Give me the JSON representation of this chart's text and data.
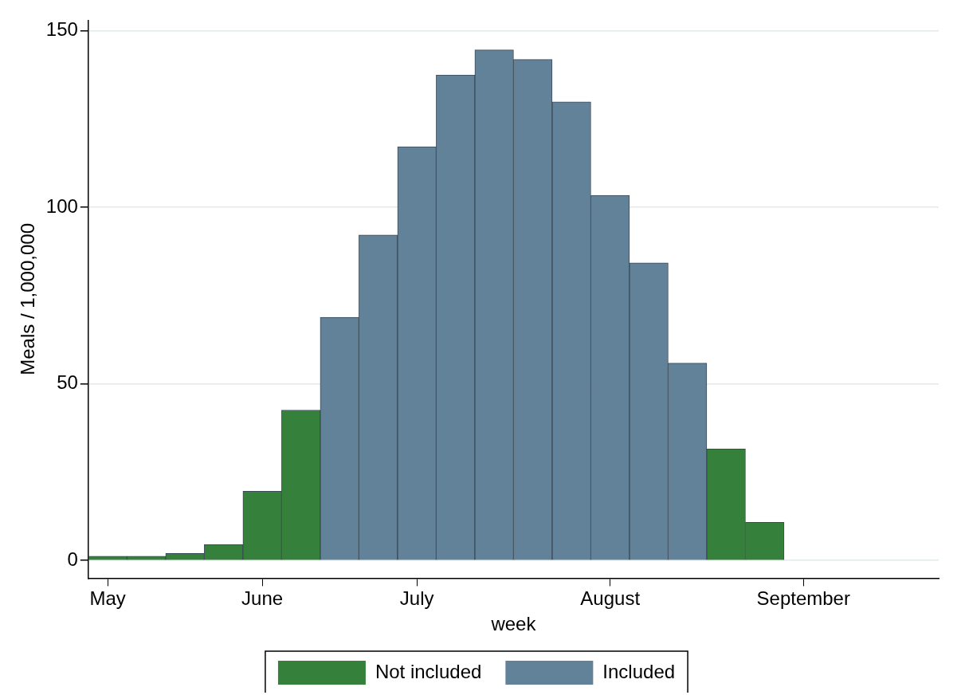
{
  "chart_data": {
    "type": "bar",
    "xlabel": "week",
    "ylabel": "Meals / 1,000,000",
    "categories": [
      "May",
      null,
      null,
      null,
      "June",
      null,
      null,
      null,
      "July",
      null,
      null,
      null,
      null,
      "August",
      null,
      null,
      null,
      null,
      "September",
      null,
      null,
      null
    ],
    "series": [
      {
        "name": "Not included",
        "color": "#35803a",
        "values": [
          1.2,
          1.2,
          2,
          4.5,
          19.6,
          42.6,
          null,
          null,
          null,
          null,
          null,
          null,
          null,
          null,
          null,
          null,
          31.6,
          10.8,
          0,
          0,
          0,
          0
        ]
      },
      {
        "name": "Included",
        "color": "#62829a",
        "values": [
          null,
          null,
          null,
          null,
          null,
          null,
          68.9,
          92.2,
          117.2,
          137.5,
          144.6,
          141.9,
          129.9,
          103.4,
          84.3,
          55.9,
          null,
          null,
          null,
          null,
          null,
          null
        ]
      }
    ],
    "ylim": [
      -5,
      153
    ],
    "yticks": [
      0,
      50,
      100,
      150
    ],
    "grid": "y",
    "legend": "bottom"
  }
}
